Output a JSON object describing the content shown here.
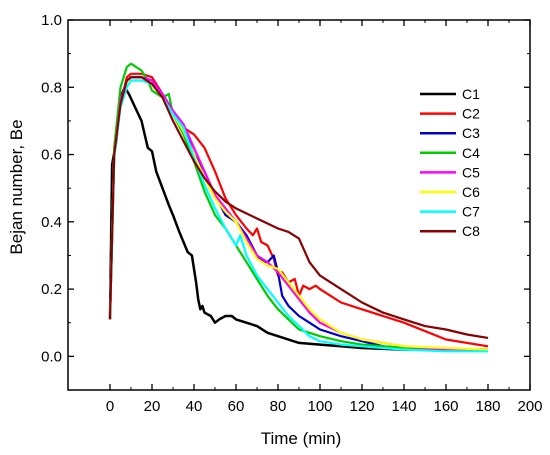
{
  "chart_data": {
    "type": "line",
    "title": "",
    "xlabel": "Time (min)",
    "ylabel": "Bejan number, Be",
    "xlim": [
      -20,
      200
    ],
    "ylim": [
      -0.1,
      1.0
    ],
    "x_ticks": [
      0,
      20,
      40,
      60,
      80,
      100,
      120,
      140,
      160,
      180,
      200
    ],
    "y_ticks": [
      0.0,
      0.2,
      0.4,
      0.6,
      0.8,
      1.0
    ],
    "x_tick_labels": [
      "0",
      "20",
      "40",
      "60",
      "80",
      "100",
      "120",
      "140",
      "160",
      "180",
      "200"
    ],
    "y_tick_labels": [
      "0.0",
      "0.2",
      "0.4",
      "0.6",
      "0.8",
      "1.0"
    ],
    "grid": false,
    "legend_position": "right",
    "series": [
      {
        "name": "C1",
        "color": "#000000",
        "x": [
          0,
          1,
          3,
          5,
          7,
          9,
          12,
          15,
          18,
          20,
          22,
          25,
          28,
          30,
          33,
          35,
          37,
          39,
          41,
          42,
          43,
          44,
          45,
          48,
          50,
          52,
          55,
          58,
          60,
          65,
          70,
          75,
          80,
          90,
          100,
          110,
          120,
          140,
          160,
          180
        ],
        "y": [
          0.11,
          0.57,
          0.64,
          0.77,
          0.8,
          0.78,
          0.74,
          0.7,
          0.62,
          0.61,
          0.55,
          0.5,
          0.45,
          0.42,
          0.37,
          0.34,
          0.31,
          0.3,
          0.22,
          0.17,
          0.14,
          0.15,
          0.13,
          0.12,
          0.1,
          0.11,
          0.12,
          0.12,
          0.11,
          0.1,
          0.09,
          0.07,
          0.06,
          0.04,
          0.035,
          0.03,
          0.025,
          0.02,
          0.02,
          0.02
        ]
      },
      {
        "name": "C2",
        "color": "#ff0000",
        "x": [
          0,
          2,
          5,
          8,
          10,
          15,
          20,
          25,
          30,
          35,
          40,
          45,
          50,
          55,
          60,
          65,
          68,
          70,
          72,
          75,
          78,
          80,
          82,
          85,
          88,
          90,
          92,
          95,
          98,
          100,
          105,
          110,
          120,
          130,
          140,
          160,
          180
        ],
        "y": [
          0.11,
          0.6,
          0.75,
          0.83,
          0.84,
          0.84,
          0.83,
          0.78,
          0.72,
          0.68,
          0.66,
          0.62,
          0.55,
          0.47,
          0.42,
          0.38,
          0.36,
          0.38,
          0.34,
          0.33,
          0.29,
          0.24,
          0.25,
          0.22,
          0.23,
          0.18,
          0.21,
          0.2,
          0.21,
          0.2,
          0.18,
          0.16,
          0.14,
          0.12,
          0.1,
          0.05,
          0.03
        ]
      },
      {
        "name": "C3",
        "color": "#0000cc",
        "x": [
          0,
          2,
          5,
          8,
          10,
          15,
          20,
          25,
          30,
          35,
          40,
          45,
          50,
          55,
          60,
          65,
          70,
          73,
          75,
          78,
          80,
          82,
          85,
          90,
          95,
          100,
          110,
          120,
          130,
          140,
          160,
          180
        ],
        "y": [
          0.11,
          0.6,
          0.75,
          0.82,
          0.83,
          0.83,
          0.82,
          0.78,
          0.73,
          0.68,
          0.6,
          0.55,
          0.48,
          0.42,
          0.4,
          0.36,
          0.3,
          0.28,
          0.28,
          0.3,
          0.25,
          0.18,
          0.15,
          0.12,
          0.1,
          0.08,
          0.06,
          0.045,
          0.03,
          0.025,
          0.02,
          0.02
        ]
      },
      {
        "name": "C4",
        "color": "#00cc00",
        "x": [
          0,
          2,
          5,
          8,
          10,
          15,
          18,
          20,
          25,
          28,
          30,
          35,
          40,
          45,
          50,
          55,
          60,
          65,
          70,
          75,
          80,
          85,
          90,
          95,
          100,
          110,
          120,
          130,
          140,
          160,
          180
        ],
        "y": [
          0.11,
          0.62,
          0.8,
          0.86,
          0.87,
          0.85,
          0.82,
          0.79,
          0.77,
          0.78,
          0.72,
          0.66,
          0.58,
          0.49,
          0.42,
          0.38,
          0.33,
          0.28,
          0.23,
          0.18,
          0.14,
          0.11,
          0.08,
          0.07,
          0.06,
          0.045,
          0.035,
          0.03,
          0.025,
          0.02,
          0.02
        ]
      },
      {
        "name": "C5",
        "color": "#ff00ff",
        "x": [
          0,
          2,
          5,
          8,
          10,
          15,
          20,
          25,
          30,
          35,
          40,
          45,
          50,
          55,
          60,
          65,
          70,
          75,
          80,
          85,
          90,
          95,
          100,
          110,
          120,
          130,
          140,
          160,
          180
        ],
        "y": [
          0.11,
          0.6,
          0.76,
          0.82,
          0.83,
          0.83,
          0.82,
          0.78,
          0.73,
          0.69,
          0.62,
          0.55,
          0.48,
          0.44,
          0.4,
          0.35,
          0.3,
          0.28,
          0.25,
          0.21,
          0.17,
          0.13,
          0.1,
          0.07,
          0.05,
          0.04,
          0.03,
          0.02,
          0.02
        ]
      },
      {
        "name": "C6",
        "color": "#ffff00",
        "x": [
          0,
          2,
          5,
          8,
          10,
          15,
          20,
          25,
          30,
          35,
          40,
          45,
          50,
          55,
          60,
          65,
          70,
          75,
          80,
          85,
          90,
          95,
          100,
          110,
          120,
          130,
          140,
          160,
          180
        ],
        "y": [
          0.11,
          0.6,
          0.75,
          0.81,
          0.82,
          0.82,
          0.81,
          0.77,
          0.72,
          0.67,
          0.6,
          0.53,
          0.47,
          0.43,
          0.4,
          0.34,
          0.29,
          0.27,
          0.26,
          0.22,
          0.18,
          0.14,
          0.11,
          0.07,
          0.05,
          0.04,
          0.03,
          0.025,
          0.02
        ]
      },
      {
        "name": "C7",
        "color": "#00ffff",
        "x": [
          0,
          2,
          5,
          8,
          10,
          15,
          20,
          25,
          30,
          35,
          40,
          45,
          50,
          55,
          60,
          62,
          65,
          70,
          75,
          80,
          85,
          90,
          95,
          100,
          110,
          120,
          130,
          140,
          160,
          180
        ],
        "y": [
          0.11,
          0.59,
          0.74,
          0.8,
          0.82,
          0.82,
          0.81,
          0.77,
          0.72,
          0.68,
          0.59,
          0.51,
          0.44,
          0.38,
          0.33,
          0.36,
          0.3,
          0.24,
          0.2,
          0.16,
          0.12,
          0.09,
          0.06,
          0.045,
          0.035,
          0.03,
          0.025,
          0.02,
          0.015,
          0.015
        ]
      },
      {
        "name": "C8",
        "color": "#8b0000",
        "x": [
          0,
          2,
          5,
          8,
          10,
          15,
          20,
          25,
          30,
          35,
          40,
          45,
          50,
          55,
          60,
          70,
          80,
          85,
          90,
          95,
          100,
          110,
          120,
          130,
          140,
          150,
          160,
          170,
          180
        ],
        "y": [
          0.11,
          0.6,
          0.75,
          0.82,
          0.83,
          0.83,
          0.81,
          0.77,
          0.7,
          0.64,
          0.58,
          0.53,
          0.49,
          0.46,
          0.44,
          0.41,
          0.38,
          0.37,
          0.35,
          0.28,
          0.24,
          0.2,
          0.16,
          0.13,
          0.11,
          0.09,
          0.08,
          0.065,
          0.055
        ]
      }
    ]
  }
}
